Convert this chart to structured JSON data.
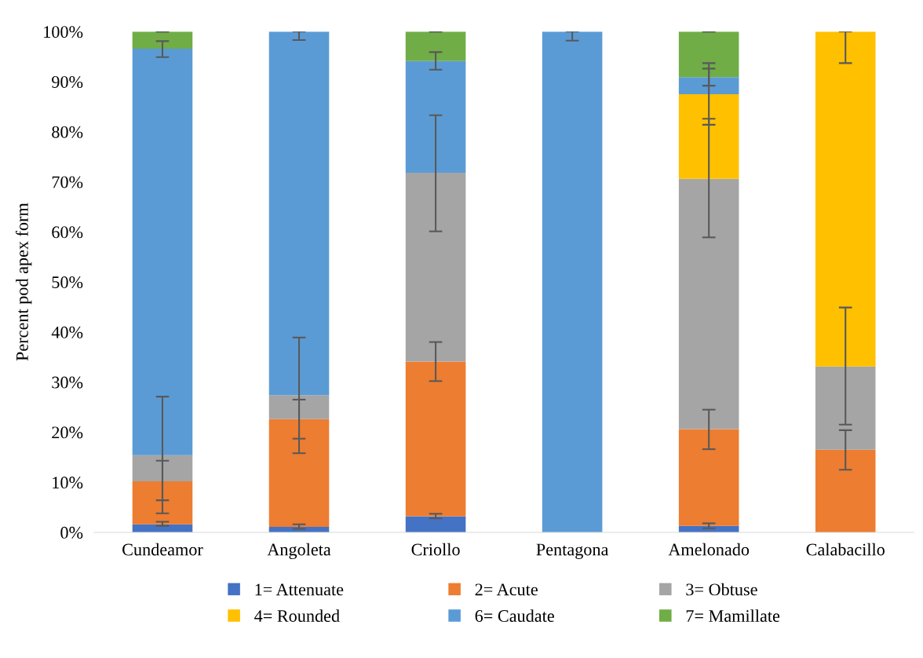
{
  "chart_data": {
    "type": "bar",
    "stacked": true,
    "ylabel": "Percent pod apex form",
    "categories": [
      "Cundeamor",
      "Angoleta",
      "Criollo",
      "Pentagona",
      "Amelonado",
      "Calabacillo"
    ],
    "series": [
      {
        "name": "1= Attenuate",
        "color": "#4472c4",
        "values": [
          1.6,
          1.1,
          3.2,
          0,
          1.3,
          0
        ],
        "errors": [
          [
            1.3,
            2.1
          ],
          [
            0.7,
            1.6
          ],
          [
            2.8,
            3.7
          ],
          null,
          [
            0.8,
            1.8
          ],
          null
        ]
      },
      {
        "name": "2= Acute",
        "color": "#ed7d31",
        "values": [
          8.6,
          21.5,
          30.9,
          0,
          19.3,
          16.5
        ],
        "errors": [
          [
            6.4,
            14.3
          ],
          [
            18.7,
            26.5
          ],
          [
            30.2,
            38.0
          ],
          null,
          [
            16.6,
            24.5
          ],
          [
            12.5,
            20.4
          ]
        ]
      },
      {
        "name": "3= Obtuse",
        "color": "#a5a5a5",
        "values": [
          5.2,
          4.8,
          37.7,
          0,
          50.0,
          16.6
        ],
        "errors": [
          [
            3.8,
            27.1
          ],
          [
            15.8,
            38.9
          ],
          [
            60.1,
            83.3
          ],
          null,
          [
            58.9,
            82.6
          ],
          [
            21.5,
            44.9
          ]
        ]
      },
      {
        "name": "4= Rounded",
        "color": "#ffc000",
        "values": [
          0,
          0,
          0,
          0,
          16.9,
          66.9
        ],
        "errors": [
          null,
          null,
          null,
          null,
          [
            81.4,
            93.7
          ],
          [
            93.7,
            100
          ]
        ]
      },
      {
        "name": "6= Caudate",
        "color": "#5b9bd5",
        "values": [
          81.2,
          72.6,
          22.3,
          100,
          3.4,
          0
        ],
        "errors": [
          [
            94.9,
            98.1
          ],
          [
            98.3,
            100
          ],
          [
            92.4,
            95.9
          ],
          [
            98.2,
            100
          ],
          [
            89.2,
            92.6
          ],
          null
        ]
      },
      {
        "name": "7= Mamillate",
        "color": "#70ad47",
        "values": [
          3.4,
          0,
          5.9,
          0,
          9.1,
          0
        ],
        "errors": [
          [
            100,
            100
          ],
          null,
          [
            100,
            100
          ],
          null,
          [
            100,
            100
          ],
          null
        ]
      }
    ],
    "ylim": [
      0,
      100
    ],
    "yticks": [
      {
        "value": 0,
        "label": "0%"
      },
      {
        "value": 10,
        "label": "10%"
      },
      {
        "value": 20,
        "label": "20%"
      },
      {
        "value": 30,
        "label": "30%"
      },
      {
        "value": 40,
        "label": "40%"
      },
      {
        "value": 50,
        "label": "50%"
      },
      {
        "value": 60,
        "label": "60%"
      },
      {
        "value": 70,
        "label": "70%"
      },
      {
        "value": 80,
        "label": "80%"
      },
      {
        "value": 90,
        "label": "90%"
      },
      {
        "value": 100,
        "label": "100%"
      }
    ],
    "grid": false,
    "legend": "bottom"
  }
}
